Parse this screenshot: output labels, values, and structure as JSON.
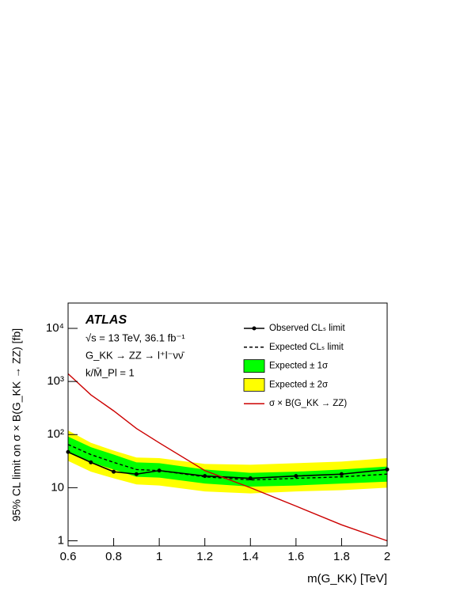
{
  "chart_data": {
    "type": "limit",
    "annotations": [
      "ATLAS",
      "√s = 13 TeV, 36.1 fb⁻¹",
      "G_KK → ZZ → l⁺l⁻νν̄",
      "k/M̄_Pl = 1"
    ],
    "xlabel": "m(G_KK) [TeV]",
    "ylabel": "95% CL limit on σ × B(G_KK → ZZ)  [fb]",
    "x": [
      0.6,
      0.7,
      0.8,
      0.9,
      1.0,
      1.2,
      1.4,
      1.6,
      1.8,
      2.0
    ],
    "xlim": [
      0.6,
      2.0
    ],
    "xticks": [
      0.6,
      0.8,
      1,
      1.2,
      1.4,
      1.6,
      1.8,
      2
    ],
    "ylim": [
      0.8,
      30000
    ],
    "yscale": "log",
    "yticks": [
      1,
      10,
      {
        "value": 100,
        "label": "10²"
      },
      {
        "value": 1000,
        "label": "10³"
      },
      {
        "value": 10000,
        "label": "10⁴"
      }
    ],
    "series": [
      {
        "name": "Observed CLₛ limit",
        "style": "solid-markers",
        "color": "#000000",
        "values": [
          47,
          30,
          20,
          18,
          21,
          16.6,
          15,
          16.6,
          18,
          22
        ]
      },
      {
        "name": "Expected CLₛ limit",
        "style": "dashed",
        "color": "#000000",
        "values": [
          65,
          42,
          30,
          22,
          21,
          16,
          14,
          15,
          16,
          18
        ]
      },
      {
        "name": "Expected ± 1σ",
        "style": "band",
        "color": "#00ff00",
        "low": [
          45,
          30,
          22,
          16,
          15.5,
          12,
          10.5,
          11,
          12,
          13
        ],
        "high": [
          92,
          58,
          42,
          30,
          29,
          22,
          19,
          20,
          22,
          25
        ]
      },
      {
        "name": "Expected ± 2σ",
        "style": "band",
        "color": "#ffff00",
        "low": [
          32,
          20,
          15,
          11.5,
          11,
          8.5,
          7.8,
          8.5,
          9,
          10
        ],
        "high": [
          120,
          70,
          50,
          37,
          36,
          28,
          27,
          29,
          31,
          36
        ]
      },
      {
        "name": "σ × B(G_KK → ZZ)",
        "style": "solid",
        "color": "#cc0000",
        "values": [
          1400,
          560,
          280,
          130,
          70,
          21,
          10,
          4.5,
          2.0,
          1.0
        ]
      }
    ]
  }
}
